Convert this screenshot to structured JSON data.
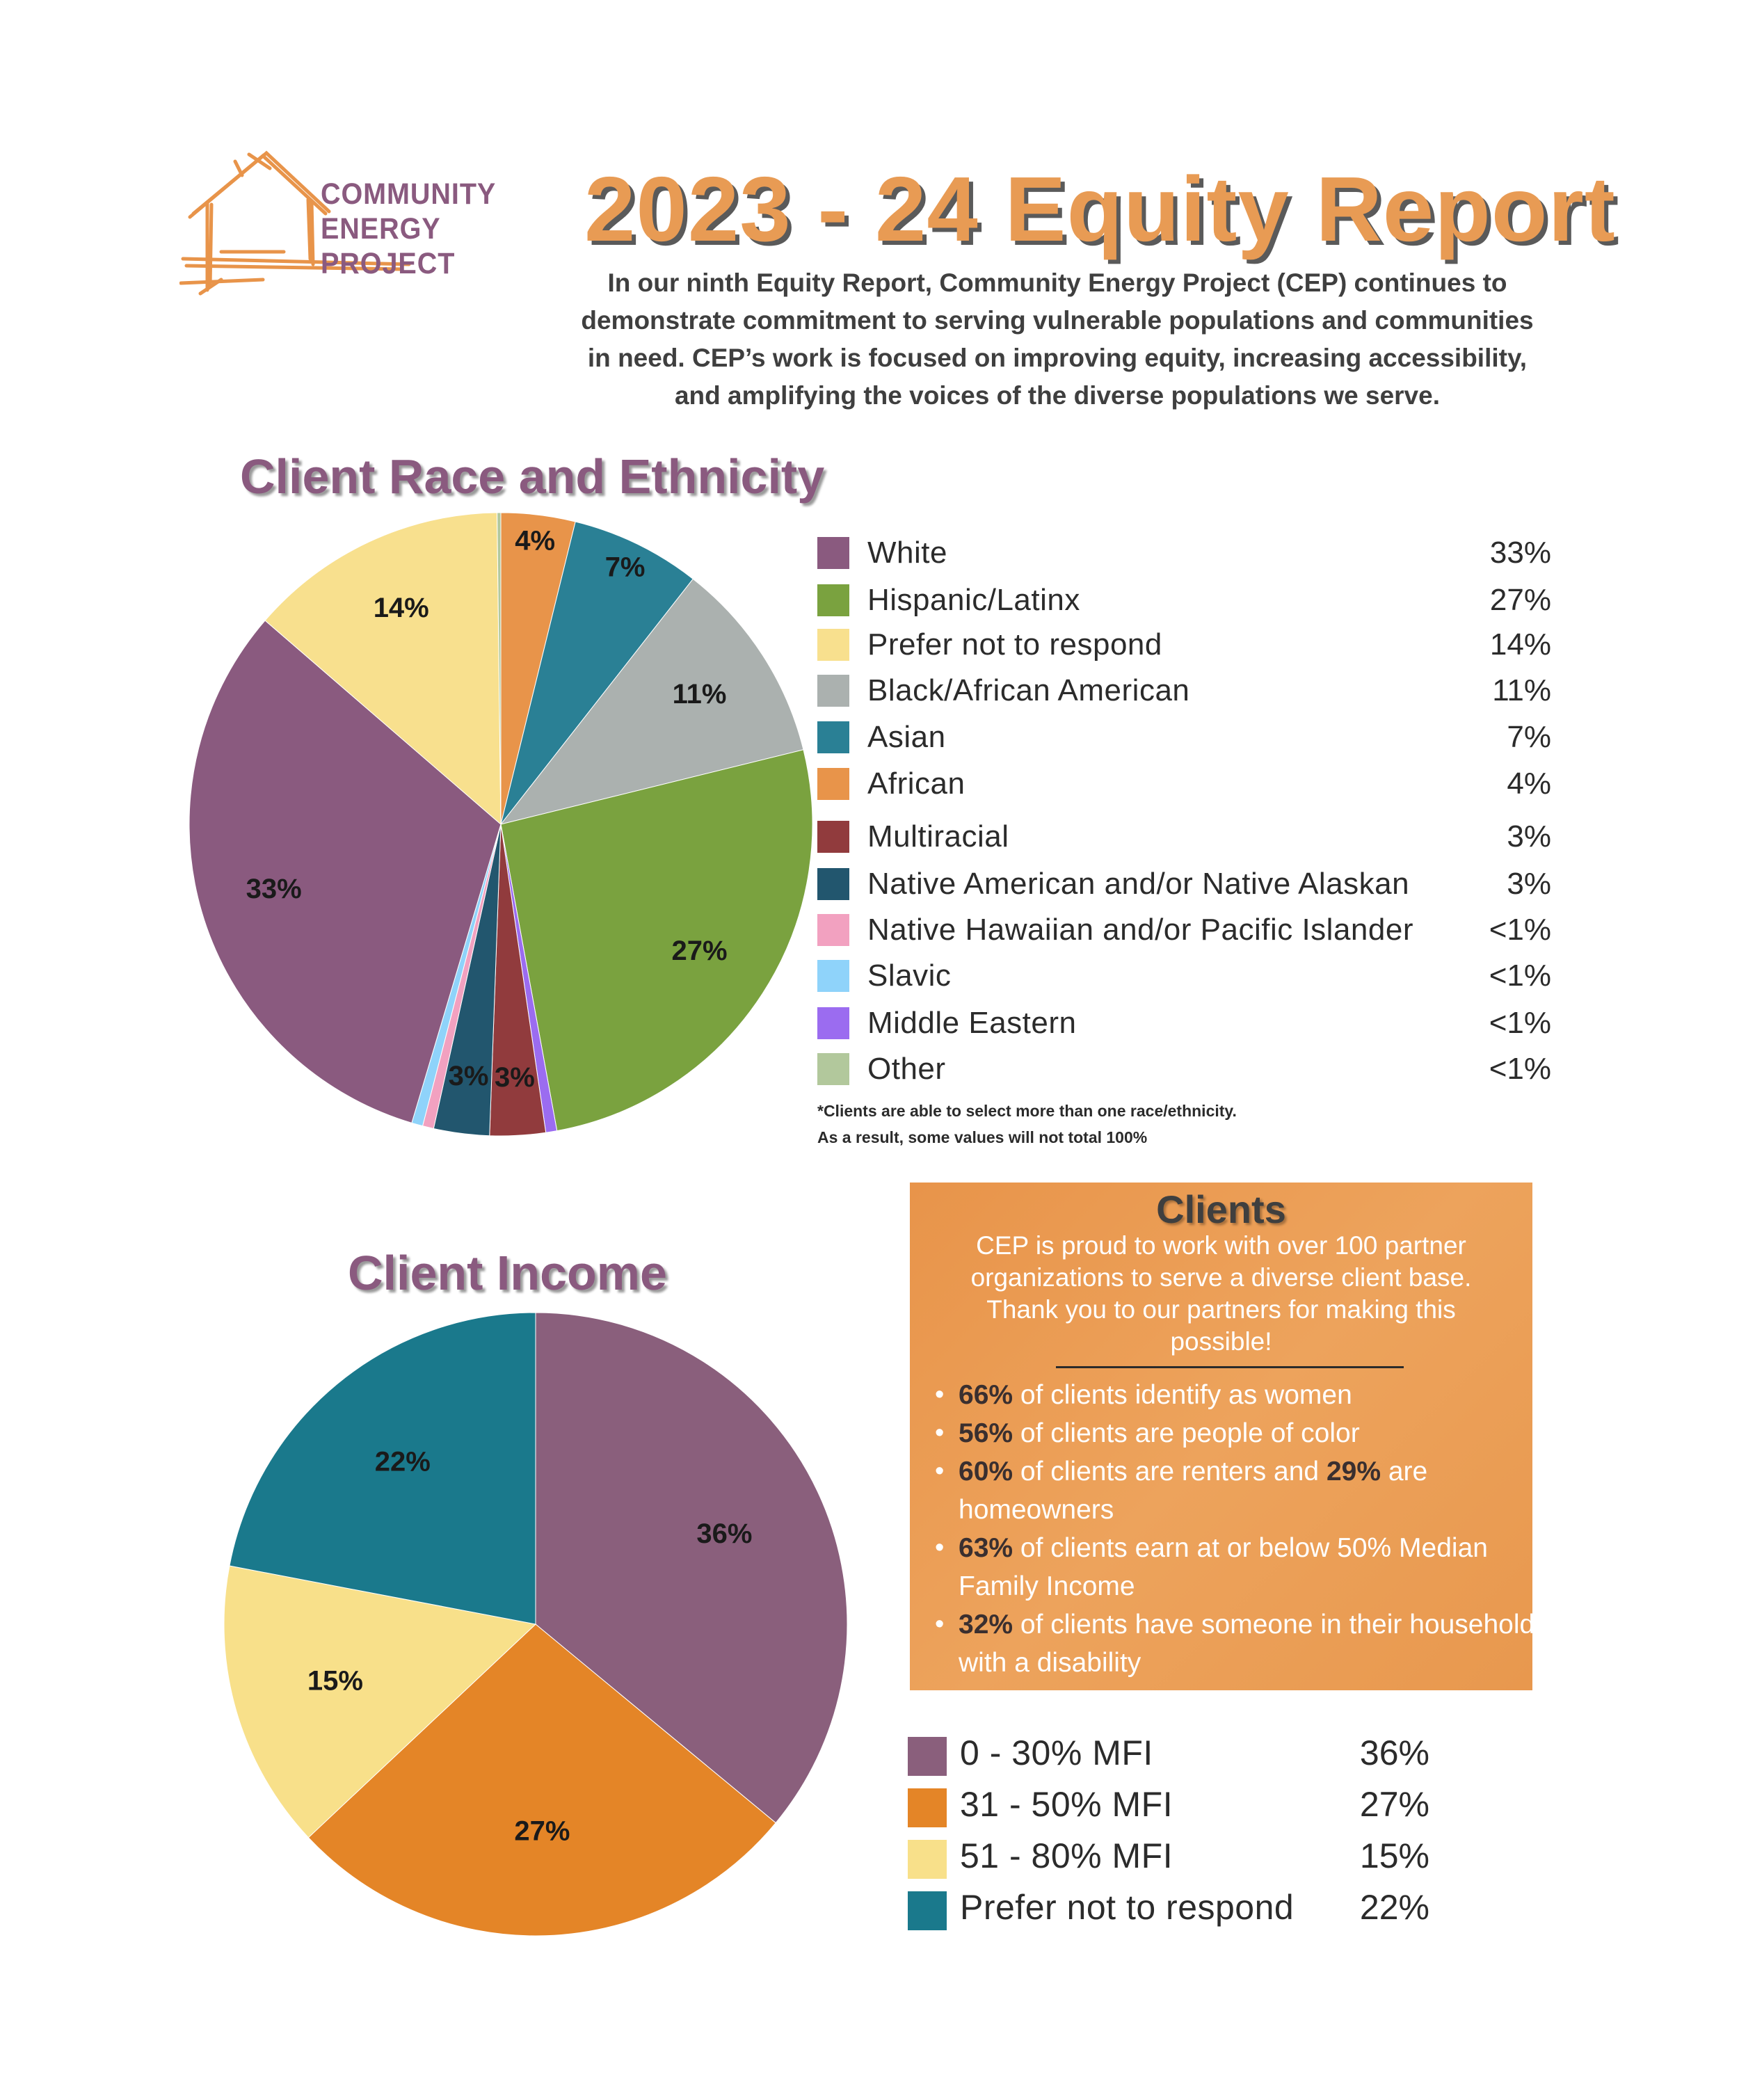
{
  "header": {
    "logo_line1": "COMMUNITY",
    "logo_line2": "ENERGY PROJECT",
    "title": "2023 - 24 Equity Report",
    "intro": "In our ninth Equity Report, Community Energy Project (CEP) continues to demonstrate commitment to serving vulnerable populations and communities in need. CEP’s work is focused on improving equity, increasing accessibility, and amplifying the voices of the diverse populations we serve."
  },
  "race": {
    "note_line1": "*Clients are able to select more than one race/ethnicity.",
    "note_line2": "As a result, some values will not total 100%"
  },
  "clients": {
    "title": "Clients",
    "description": "CEP is proud to work with over 100 partner organizations to serve a diverse client base. Thank you to our partners for making this possible!",
    "bullets": [
      {
        "highlight": "66%",
        "text": " of clients identify as women"
      },
      {
        "highlight": "56%",
        "text": " of clients are people of color"
      },
      {
        "highlight": "60%",
        "text": " of clients are renters and ",
        "highlight2": "29%",
        "text2": " are homeowners"
      },
      {
        "highlight": "63%",
        "text": " of clients earn at or below 50% Median Family Income"
      },
      {
        "highlight": "32%",
        "text": " of clients have someone in their household with a disability"
      }
    ]
  },
  "chart_data": [
    {
      "type": "pie",
      "title": "Client Race and Ethnicity",
      "slices": [
        {
          "label": "White",
          "value": 33,
          "display": "33%",
          "color": "#8a5a7f",
          "pie_label": "33%"
        },
        {
          "label": "Hispanic/Latinx",
          "value": 27,
          "display": "27%",
          "color": "#7aa23f",
          "pie_label": "27%"
        },
        {
          "label": "Prefer not to respond",
          "value": 14,
          "display": "14%",
          "color": "#f8e08e",
          "pie_label": "14%"
        },
        {
          "label": "Black/African American",
          "value": 11,
          "display": "11%",
          "color": "#abb1af",
          "pie_label": "11%"
        },
        {
          "label": "Asian",
          "value": 7,
          "display": "7%",
          "color": "#2a8095",
          "pie_label": "7%"
        },
        {
          "label": "African",
          "value": 4,
          "display": "4%",
          "color": "#e8944a",
          "pie_label": "4%"
        },
        {
          "label": "Multiracial",
          "value": 3,
          "display": "3%",
          "color": "#913b3d",
          "pie_label": "3%"
        },
        {
          "label": "Native American and/or Native Alaskan",
          "value": 3,
          "display": "3%",
          "color": "#22566e",
          "pie_label": "3%"
        },
        {
          "label": "Native Hawaiian and/or Pacific Islander",
          "value": 0.6,
          "display": "<1%",
          "color": "#f2a1c0",
          "pie_label": ""
        },
        {
          "label": "Slavic",
          "value": 0.6,
          "display": "<1%",
          "color": "#8fd3fa",
          "pie_label": ""
        },
        {
          "label": "Middle Eastern",
          "value": 0.6,
          "display": "<1%",
          "color": "#9b6cf0",
          "pie_label": ""
        },
        {
          "label": "Other",
          "value": 0.2,
          "display": "<1%",
          "color": "#b2c89c",
          "pie_label": ""
        }
      ],
      "pie_order": [
        "African",
        "Asian",
        "Black/African American",
        "Hispanic/Latinx",
        "Middle Eastern",
        "Multiracial",
        "Native American and/or Native Alaskan",
        "Native Hawaiian and/or Pacific Islander",
        "Slavic",
        "White",
        "Prefer not to respond",
        "Other"
      ],
      "legend_position": "right"
    },
    {
      "type": "pie",
      "title": "Client Income",
      "slices": [
        {
          "label": "0 - 30% MFI",
          "value": 36,
          "display": "36%",
          "color": "#8a5f7c",
          "pie_label": "36%"
        },
        {
          "label": "31 - 50% MFI",
          "value": 27,
          "display": "27%",
          "color": "#e48527",
          "pie_label": "27%"
        },
        {
          "label": "51 - 80% MFI",
          "value": 15,
          "display": "15%",
          "color": "#f8e08a",
          "pie_label": "15%"
        },
        {
          "label": "Prefer not to respond",
          "value": 22,
          "display": "22%",
          "color": "#1a798c",
          "pie_label": "22%"
        }
      ],
      "legend_position": "bottom-right"
    }
  ]
}
